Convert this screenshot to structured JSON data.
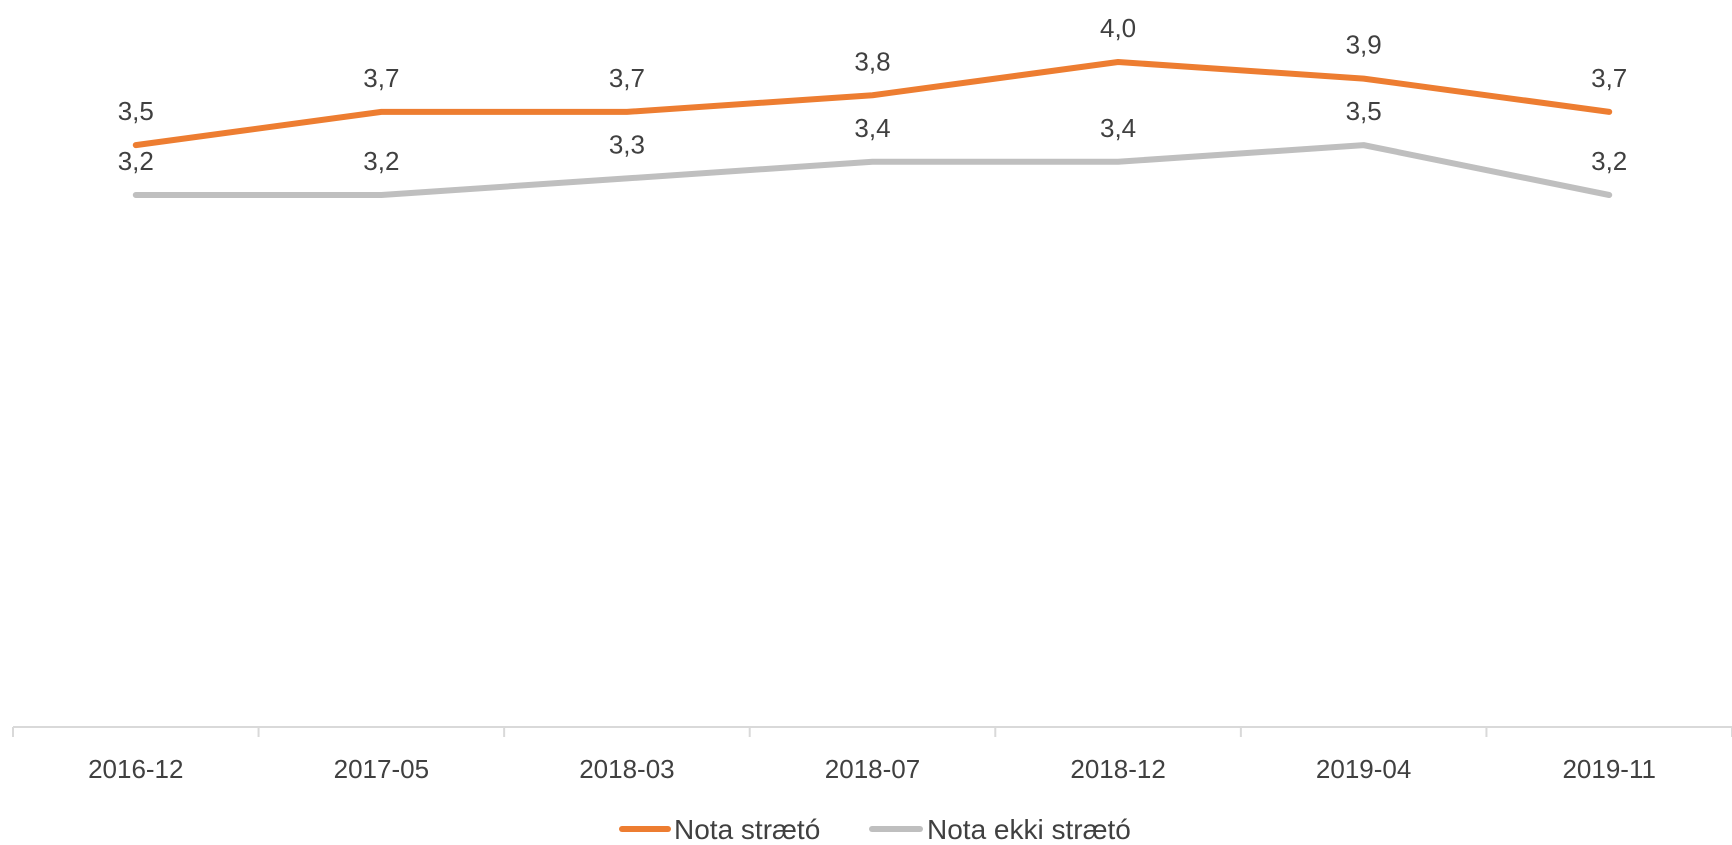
{
  "chart_data": {
    "type": "line",
    "categories": [
      "2016-12",
      "2017-05",
      "2018-03",
      "2018-07",
      "2018-12",
      "2019-04",
      "2019-11"
    ],
    "series": [
      {
        "name": "Nota strætó",
        "color": "#ED7D31",
        "values": [
          3.5,
          3.7,
          3.7,
          3.8,
          4.0,
          3.9,
          3.7
        ],
        "labels": [
          "3,5",
          "3,7",
          "3,7",
          "3,8",
          "4,0",
          "3,9",
          "3,7"
        ]
      },
      {
        "name": "Nota ekki strætó",
        "color": "#BFBFBF",
        "values": [
          3.2,
          3.2,
          3.3,
          3.4,
          3.4,
          3.5,
          3.2
        ],
        "labels": [
          "3,2",
          "3,2",
          "3,3",
          "3,4",
          "3,4",
          "3,5",
          "3,2"
        ]
      }
    ],
    "title": "",
    "xlabel": "",
    "ylabel": "",
    "ylim": [
      0,
      4.5
    ],
    "grid": false,
    "legend_position": "bottom",
    "axis_color": "#D9D9D9"
  }
}
